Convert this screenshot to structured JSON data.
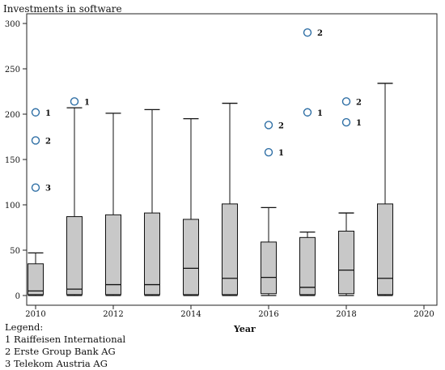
{
  "chart_data": {
    "type": "box",
    "title": "",
    "ylabel": "Investments in software",
    "xlabel": "Year",
    "xlim": [
      2010,
      2020
    ],
    "ylim": [
      0,
      300
    ],
    "xticks": [
      "2010",
      "2012",
      "2014",
      "2016",
      "2018",
      "2020"
    ],
    "yticks": [
      "0",
      "50",
      "100",
      "150",
      "200",
      "250",
      "300"
    ],
    "grid": false,
    "box_color": "#c8c8c8",
    "outlier_color": "#2f6fa5",
    "boxes": [
      {
        "x": 2010,
        "whisker_low": 0,
        "q1": 1,
        "median": 5,
        "q3": 35,
        "whisker_high": 47
      },
      {
        "x": 2011,
        "whisker_low": 0,
        "q1": 1,
        "median": 7,
        "q3": 87,
        "whisker_high": 207
      },
      {
        "x": 2012,
        "whisker_low": 0,
        "q1": 1,
        "median": 12,
        "q3": 89,
        "whisker_high": 201
      },
      {
        "x": 2013,
        "whisker_low": 0,
        "q1": 1,
        "median": 12,
        "q3": 91,
        "whisker_high": 205
      },
      {
        "x": 2014,
        "whisker_low": 0,
        "q1": 1,
        "median": 30,
        "q3": 84,
        "whisker_high": 195
      },
      {
        "x": 2015,
        "whisker_low": 0,
        "q1": 1,
        "median": 19,
        "q3": 101,
        "whisker_high": 212
      },
      {
        "x": 2016,
        "whisker_low": 0,
        "q1": 2,
        "median": 20,
        "q3": 59,
        "whisker_high": 97
      },
      {
        "x": 2017,
        "whisker_low": 0,
        "q1": 1,
        "median": 9,
        "q3": 64,
        "whisker_high": 70
      },
      {
        "x": 2018,
        "whisker_low": 0,
        "q1": 2,
        "median": 28,
        "q3": 71,
        "whisker_high": 91
      },
      {
        "x": 2019,
        "whisker_low": 0,
        "q1": 1,
        "median": 19,
        "q3": 101,
        "whisker_high": 234
      }
    ],
    "outliers": [
      {
        "x": 2010,
        "y": 202,
        "label": "1"
      },
      {
        "x": 2010,
        "y": 171,
        "label": "2"
      },
      {
        "x": 2010,
        "y": 119,
        "label": "3"
      },
      {
        "x": 2011,
        "y": 214,
        "label": "1"
      },
      {
        "x": 2016,
        "y": 188,
        "label": "2"
      },
      {
        "x": 2016,
        "y": 158,
        "label": "1"
      },
      {
        "x": 2017,
        "y": 290,
        "label": "2"
      },
      {
        "x": 2017,
        "y": 202,
        "label": "1"
      },
      {
        "x": 2018,
        "y": 214,
        "label": "2"
      },
      {
        "x": 2018,
        "y": 191,
        "label": "1"
      }
    ],
    "legend": {
      "title": "Legend:",
      "entries": [
        "1 Raiffeisen International",
        "2 Erste Group Bank AG",
        "3 Telekom Austria AG"
      ]
    }
  }
}
